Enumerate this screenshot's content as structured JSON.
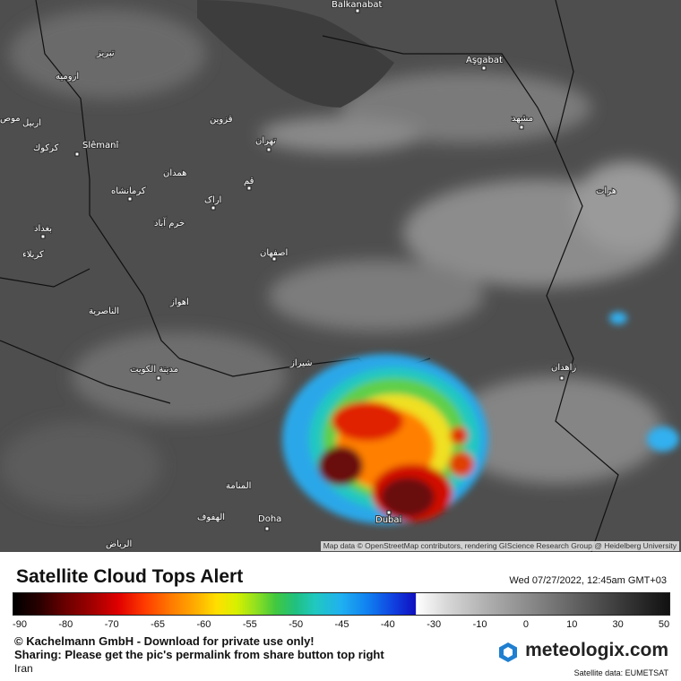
{
  "header": {
    "title": "Satellite Cloud Tops Alert",
    "timestamp": "Wed 07/27/2022, 12:45am GMT+03"
  },
  "legend": {
    "ticks": [
      -90,
      -80,
      -70,
      -65,
      -60,
      -55,
      -50,
      -45,
      -40,
      -30,
      -10,
      0,
      10,
      30,
      50
    ]
  },
  "map": {
    "attribution": "Map data © OpenStreetMap contributors, rendering GIScience Research Group @ Heidelberg University",
    "cities": [
      "Balkanabat",
      "Aşgabat",
      "تبریز",
      "ارومیه",
      "موص",
      "اربیل",
      "کرکوك",
      "Slêmanî",
      "قزوین",
      "تهران",
      "مشهد",
      "همدان",
      "کرمانشاه",
      "قم",
      "اراک",
      "خرم آباد",
      "بغداد",
      "هرات",
      "کربلاء",
      "اصفهان",
      "الناصرية",
      "اهواز",
      "شیراز",
      "مدينة الكويت",
      "زاهدان",
      "المنامة",
      "الهفوف",
      "Doha",
      "Dubai",
      "الرياض"
    ]
  },
  "footer": {
    "copyright": "© Kachelmann GmbH - Download for private use only!",
    "sharing": "Sharing: Please get the pic's permalink from share button top right",
    "region": "Iran",
    "brand": "meteologix.com",
    "source": "Satellite data: EUMETSAT"
  }
}
